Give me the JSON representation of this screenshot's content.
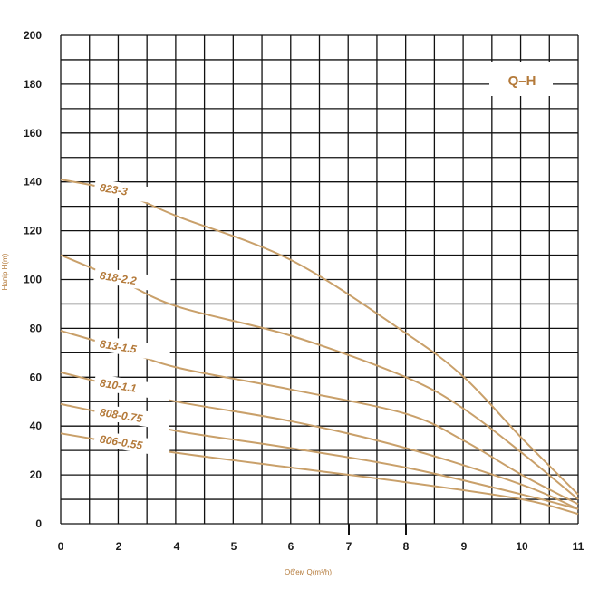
{
  "chart_data": {
    "type": "line",
    "title": "Q–H",
    "xlabel": "Об'ем Q(m³/h)",
    "ylabel": "Напір H(m)",
    "xlim": [
      0,
      11
    ],
    "ylim": [
      0,
      200
    ],
    "x_ticks": [
      "0",
      "2",
      "4",
      "5",
      "6",
      "7",
      "8",
      "9",
      "10",
      "11"
    ],
    "y_ticks": [
      "0",
      "20",
      "40",
      "60",
      "80",
      "100",
      "120",
      "140",
      "160",
      "180",
      "200"
    ],
    "grid": true,
    "line_color": "#c9a06a",
    "label_color": "#b47a3a",
    "series": [
      {
        "name": "823-3",
        "x": [
          0,
          2,
          4,
          6,
          8,
          9,
          10,
          11
        ],
        "y": [
          141,
          136,
          126,
          108,
          78,
          60,
          35,
          12
        ]
      },
      {
        "name": "818-2.2",
        "x": [
          0,
          2,
          4,
          6,
          8,
          9,
          10,
          11
        ],
        "y": [
          110,
          100,
          89,
          77,
          60,
          47,
          29,
          10
        ]
      },
      {
        "name": "813-1.5",
        "x": [
          0,
          2,
          4,
          6,
          8,
          9,
          10,
          11
        ],
        "y": [
          79,
          72,
          64,
          55,
          45,
          34,
          20,
          8
        ]
      },
      {
        "name": "810-1.1",
        "x": [
          0,
          2,
          4,
          6,
          8,
          10,
          11
        ],
        "y": [
          62,
          56,
          50,
          42,
          31,
          16,
          6
        ]
      },
      {
        "name": "808-0.75",
        "x": [
          0,
          2,
          4,
          6,
          8,
          10,
          11
        ],
        "y": [
          49,
          44,
          38,
          31,
          23,
          12,
          6
        ]
      },
      {
        "name": "806-0.55",
        "x": [
          0,
          2,
          4,
          6,
          8,
          10,
          11
        ],
        "y": [
          37,
          33,
          29,
          23,
          17,
          10,
          4
        ]
      }
    ]
  }
}
